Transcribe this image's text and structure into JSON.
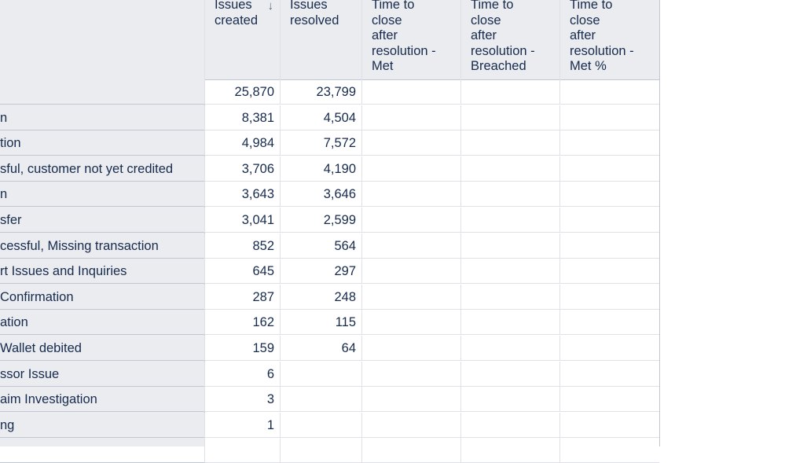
{
  "columns": {
    "issues_created": "Issues\ncreated",
    "issues_resolved": "Issues\nresolved",
    "ttc_met": "Time to\nclose\nafter\nresolution -\nMet",
    "ttc_breached": "Time to\nclose\nafter\nresolution -\nBreached",
    "ttc_met_pct": "Time to\nclose\nafter\nresolution -\nMet %"
  },
  "sort_icon": "arrow-down-icon",
  "rows": [
    {
      "label": "",
      "created": "25,870",
      "resolved": "23,799"
    },
    {
      "label": "n",
      "created": "8,381",
      "resolved": "4,504"
    },
    {
      "label": "tion",
      "created": "4,984",
      "resolved": "7,572"
    },
    {
      "label": "sful, customer not yet credited",
      "created": "3,706",
      "resolved": "4,190"
    },
    {
      "label": "n",
      "created": "3,643",
      "resolved": "3,646"
    },
    {
      "label": "sfer",
      "created": "3,041",
      "resolved": "2,599"
    },
    {
      "label": "cessful, Missing transaction",
      "created": "852",
      "resolved": "564"
    },
    {
      "label": "rt Issues and Inquiries",
      "created": "645",
      "resolved": "297"
    },
    {
      "label": "Confirmation",
      "created": "287",
      "resolved": "248"
    },
    {
      "label": "ation",
      "created": "162",
      "resolved": "115"
    },
    {
      "label": "Wallet debited",
      "created": "159",
      "resolved": "64"
    },
    {
      "label": "ssor Issue",
      "created": "6",
      "resolved": ""
    },
    {
      "label": "aim Investigation",
      "created": "3",
      "resolved": ""
    },
    {
      "label": "ng",
      "created": "1",
      "resolved": ""
    },
    {
      "label": "",
      "created": "",
      "resolved": ""
    }
  ]
}
